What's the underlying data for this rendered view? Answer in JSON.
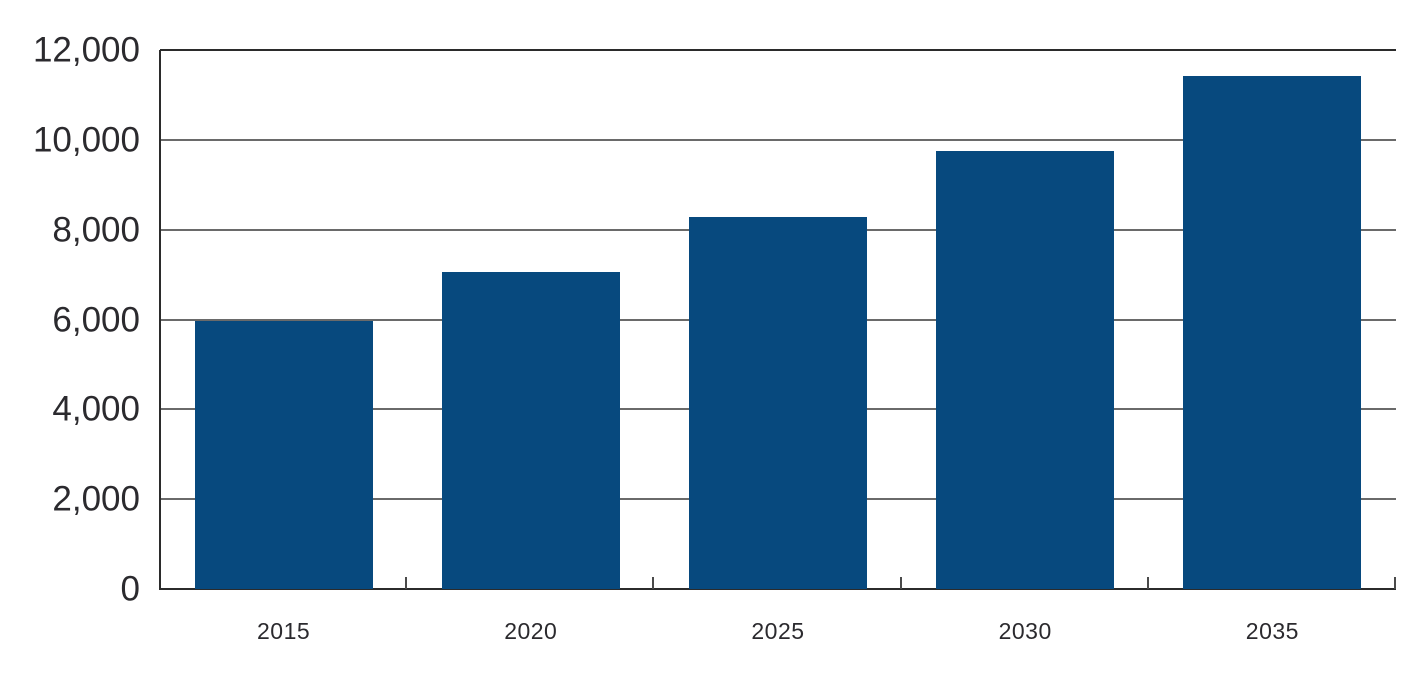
{
  "chart_data": {
    "type": "bar",
    "categories": [
      "2015",
      "2020",
      "2025",
      "2030",
      "2035"
    ],
    "values": [
      5970,
      7050,
      8280,
      9750,
      11420
    ],
    "title": "",
    "xlabel": "",
    "ylabel": "",
    "ylim": [
      0,
      12000
    ],
    "y_ticks": [
      0,
      2000,
      4000,
      6000,
      8000,
      10000,
      12000
    ],
    "y_tick_labels": [
      "0",
      "2,000",
      "4,000",
      "6,000",
      "8,000",
      "10,000",
      "12,000"
    ],
    "grid": "horizontal-only",
    "legend": "none",
    "bar_color": "#07497E",
    "grid_color": "#6A6A6A",
    "axis_color": "#2B2B2B",
    "tick_color": "#4A4A4A",
    "label_color": "#2B2A2E",
    "bar_width_fraction_of_cell": 0.72
  }
}
